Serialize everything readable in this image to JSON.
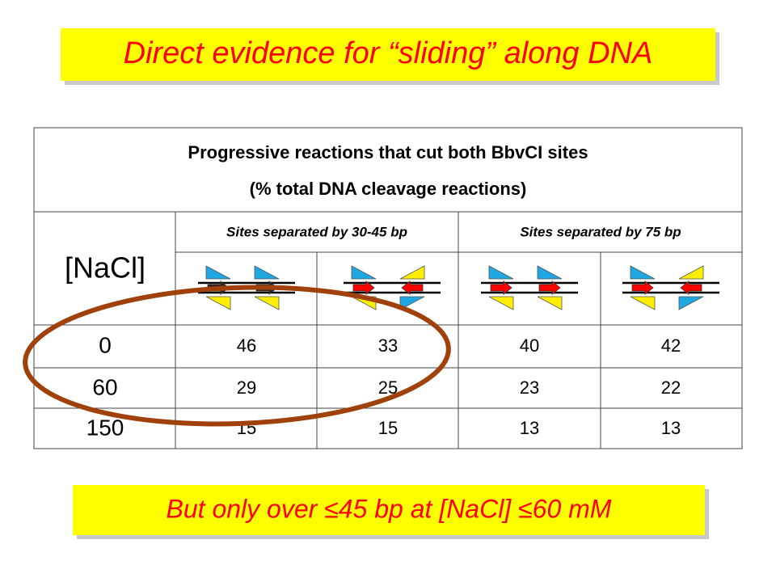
{
  "title": "Direct evidence for “sliding” along DNA",
  "table": {
    "caption": [
      "Progressive reactions that cut both BbvCI sites",
      "(% total DNA cleavage reactions)"
    ],
    "row_header": "[NaCl]",
    "column_groups": [
      "Sites separated by 30-45 bp",
      "Sites separated by 75 bp"
    ],
    "rows": [
      [
        "0",
        "46",
        "33",
        "40",
        "42"
      ],
      [
        "60",
        "29",
        "25",
        "23",
        "22"
      ],
      [
        "150",
        "15",
        "15",
        "13",
        "13"
      ]
    ]
  },
  "footer": "But only over ≤45 bp at [NaCl] ≤60 mM"
}
